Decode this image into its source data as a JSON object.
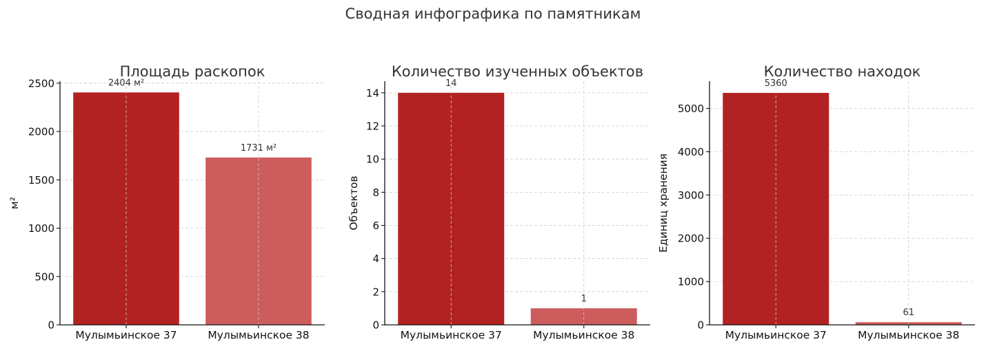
{
  "suptitle": "Сводная инфографика по памятникам",
  "chart_data": [
    {
      "type": "bar",
      "title": "Площадь раскопок",
      "xlabel": "",
      "ylabel": "м²",
      "categories": [
        "Мулымьинское 37",
        "Мулымьинское 38"
      ],
      "values": [
        2404,
        1731
      ],
      "value_labels": [
        "2404 м²",
        "1731 м²"
      ],
      "colors": [
        "#b22222",
        "#cd5c5c"
      ],
      "ylim": [
        0,
        2520
      ],
      "yticks": [
        0,
        500,
        1000,
        1500,
        2000,
        2500
      ],
      "grid": true
    },
    {
      "type": "bar",
      "title": "Количество изученных объектов",
      "xlabel": "",
      "ylabel": "Объектов",
      "categories": [
        "Мулымьинское 37",
        "Мулымьинское 38"
      ],
      "values": [
        14,
        1
      ],
      "value_labels": [
        "14",
        "1"
      ],
      "colors": [
        "#b22222",
        "#cd5c5c"
      ],
      "ylim": [
        0,
        14.7
      ],
      "yticks": [
        0,
        2,
        4,
        6,
        8,
        10,
        12,
        14
      ],
      "grid": true
    },
    {
      "type": "bar",
      "title": "Количество находок",
      "xlabel": "",
      "ylabel": "Единиц хранения",
      "categories": [
        "Мулымьинское 37",
        "Мулымьинское 38"
      ],
      "values": [
        5360,
        61
      ],
      "value_labels": [
        "5360",
        "61"
      ],
      "colors": [
        "#b22222",
        "#cd5c5c"
      ],
      "ylim": [
        0,
        5630
      ],
      "yticks": [
        0,
        1000,
        2000,
        3000,
        4000,
        5000
      ],
      "grid": true
    }
  ]
}
